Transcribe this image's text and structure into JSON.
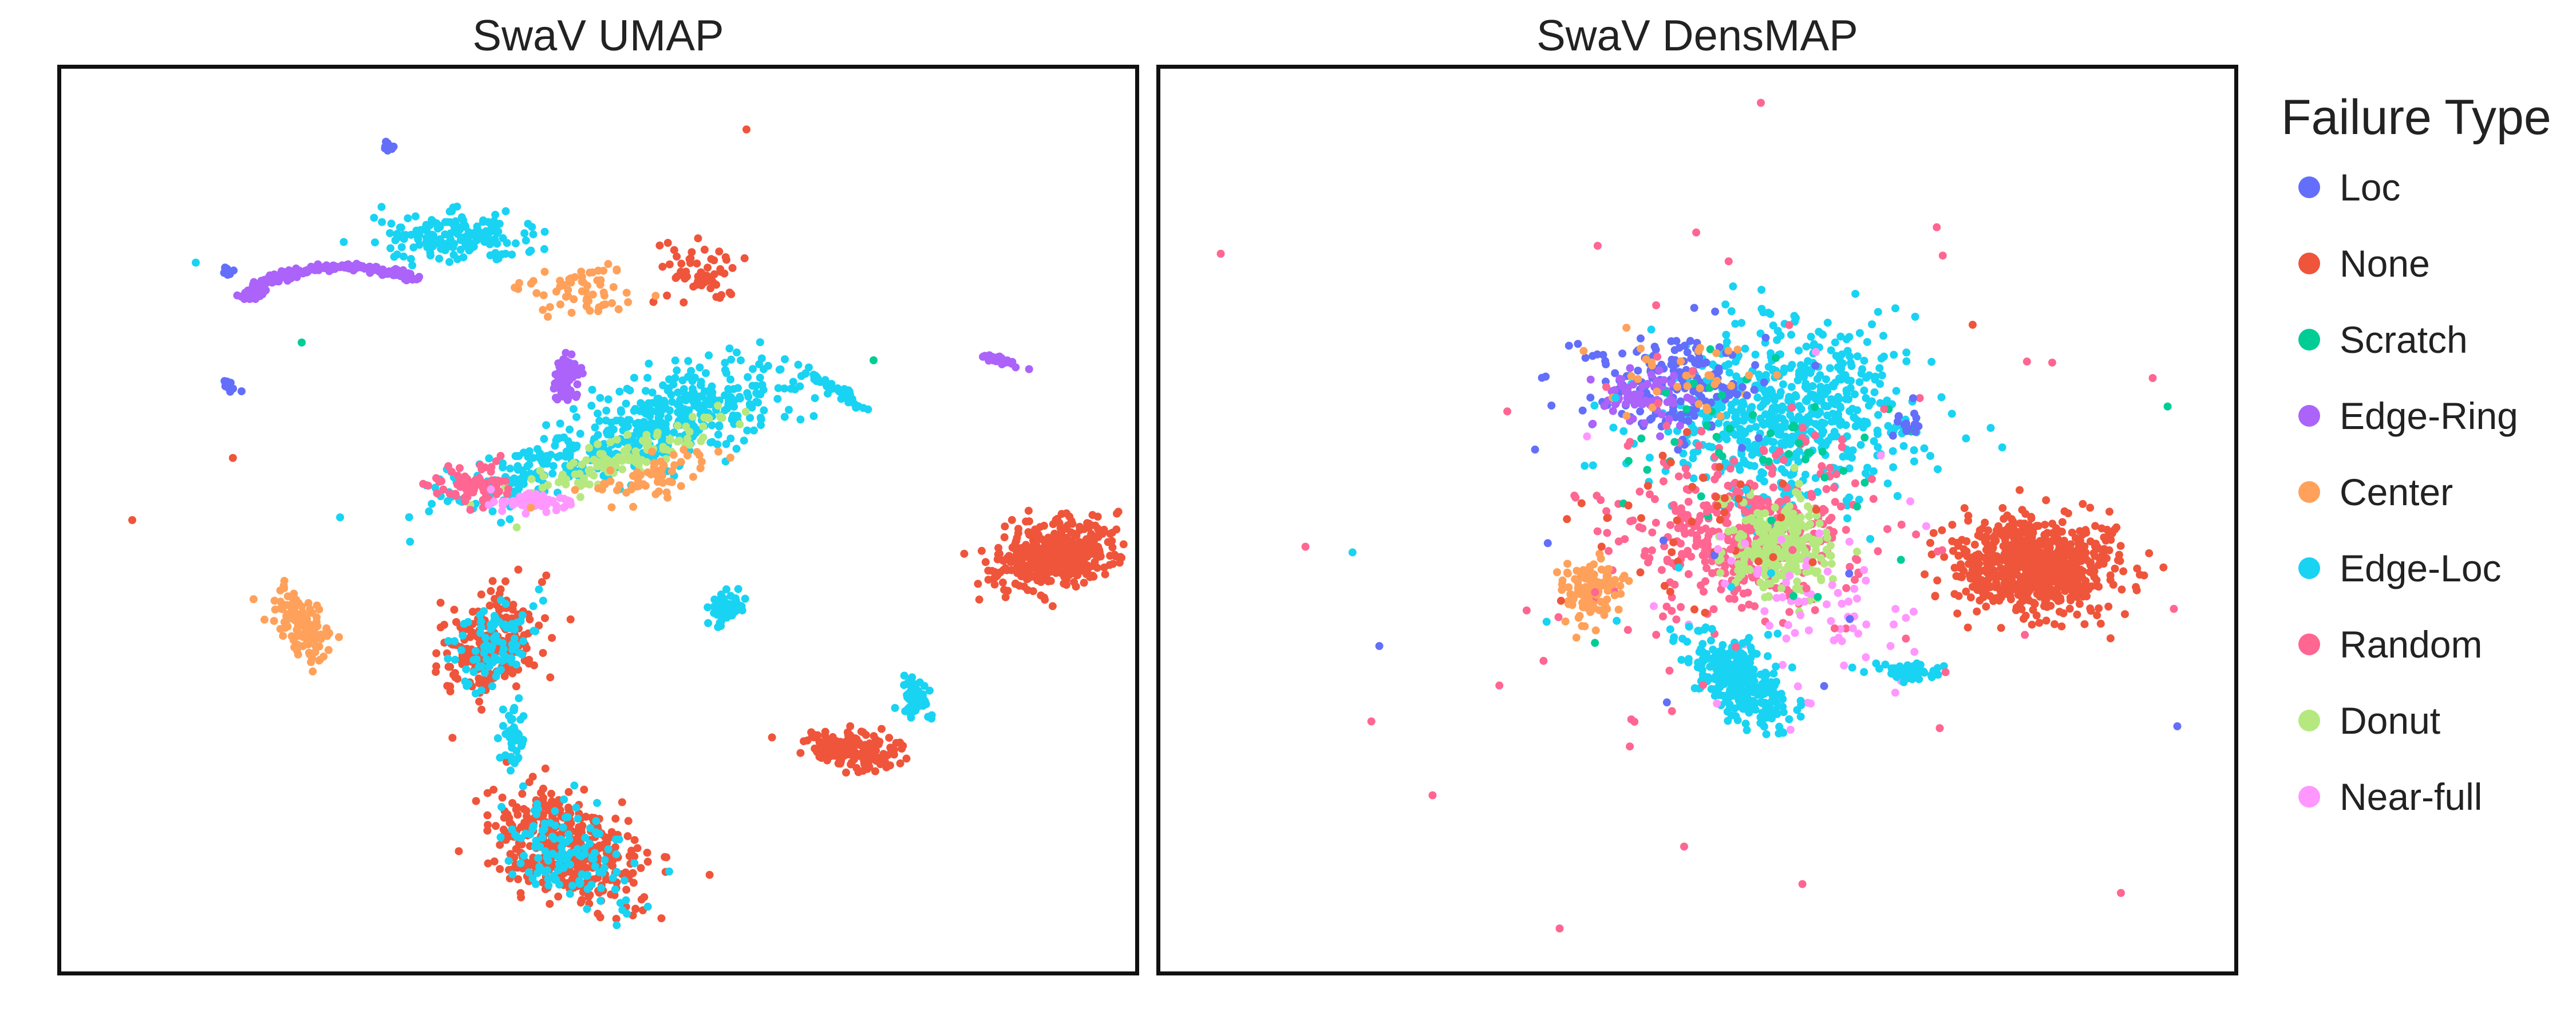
{
  "chart_data": [
    {
      "type": "scatter",
      "title": "SwaV UMAP",
      "xlabel": "",
      "ylabel": "",
      "grid": false,
      "legend": "right",
      "xlim": [
        0,
        100
      ],
      "ylim": [
        0,
        100
      ],
      "clusters": [
        {
          "series": "Edge-Ring",
          "cx": 26,
          "cy": 77,
          "rx": 9,
          "ry": 2.5,
          "n": 230,
          "shape": "arc",
          "r": 10,
          "a0": 40,
          "a1": 175
        },
        {
          "series": "Edge-Loc",
          "cx": 36,
          "cy": 82,
          "rx": 7,
          "ry": 3,
          "n": 160
        },
        {
          "series": "Edge-Loc",
          "cx": 58,
          "cy": 62,
          "rx": 11,
          "ry": 5,
          "n": 320,
          "rot": 20
        },
        {
          "series": "Edge-Loc",
          "cx": 45,
          "cy": 56,
          "rx": 12,
          "ry": 3,
          "n": 180,
          "rot": 20
        },
        {
          "series": "None",
          "cx": 60,
          "cy": 78,
          "rx": 4,
          "ry": 3,
          "n": 60
        },
        {
          "series": "Center",
          "cx": 48,
          "cy": 76,
          "rx": 6,
          "ry": 3,
          "n": 60
        },
        {
          "series": "Donut",
          "cx": 52,
          "cy": 57,
          "rx": 10,
          "ry": 2.2,
          "n": 120,
          "rot": 25
        },
        {
          "series": "Random",
          "cx": 38,
          "cy": 54,
          "rx": 4,
          "ry": 2.5,
          "n": 70
        },
        {
          "series": "Near-full",
          "cx": 44,
          "cy": 52,
          "rx": 4,
          "ry": 1.2,
          "n": 60
        },
        {
          "series": "Center",
          "cx": 56,
          "cy": 55,
          "rx": 8,
          "ry": 2.5,
          "n": 60,
          "rot": 20
        },
        {
          "series": "Edge-Ring",
          "cx": 47,
          "cy": 66,
          "rx": 1.2,
          "ry": 3,
          "n": 70
        },
        {
          "series": "Edge-Loc",
          "cx": 72,
          "cy": 65,
          "rx": 4,
          "ry": 0.6,
          "n": 45,
          "rot": -35
        },
        {
          "series": "Edge-Loc",
          "cx": 80,
          "cy": 30,
          "rx": 1.5,
          "ry": 3,
          "n": 60
        },
        {
          "series": "None",
          "cx": 93,
          "cy": 46,
          "rx": 6,
          "ry": 3.5,
          "n": 420,
          "rot": 15
        },
        {
          "series": "None",
          "cx": 40,
          "cy": 36,
          "rx": 4,
          "ry": 6,
          "n": 220,
          "rot": -25
        },
        {
          "series": "Edge-Loc",
          "cx": 40,
          "cy": 36,
          "rx": 3.5,
          "ry": 5,
          "n": 90,
          "rot": -25
        },
        {
          "series": "None",
          "cx": 47,
          "cy": 13,
          "rx": 8,
          "ry": 5,
          "n": 420,
          "rot": -38
        },
        {
          "series": "Edge-Loc",
          "cx": 47,
          "cy": 13,
          "rx": 7.5,
          "ry": 4.5,
          "n": 130,
          "rot": -38
        },
        {
          "series": "Edge-Loc",
          "cx": 42,
          "cy": 26,
          "rx": 1,
          "ry": 4,
          "n": 50
        },
        {
          "series": "None",
          "cx": 74,
          "cy": 24,
          "rx": 4.5,
          "ry": 2,
          "n": 170,
          "rot": -10
        },
        {
          "series": "Center",
          "cx": 22,
          "cy": 38,
          "rx": 2,
          "ry": 5,
          "n": 120,
          "rot": 25
        },
        {
          "series": "Edge-Loc",
          "cx": 62,
          "cy": 40,
          "rx": 1.5,
          "ry": 2,
          "n": 60
        },
        {
          "series": "Edge-Ring",
          "cx": 88,
          "cy": 68,
          "rx": 2.5,
          "ry": 0.5,
          "n": 25,
          "rot": -20
        },
        {
          "series": "Loc",
          "cx": 15,
          "cy": 78,
          "rx": 0.8,
          "ry": 0.4,
          "n": 10
        },
        {
          "series": "Loc",
          "cx": 30,
          "cy": 92,
          "rx": 0.8,
          "ry": 0.4,
          "n": 10
        },
        {
          "series": "Loc",
          "cx": 15,
          "cy": 65,
          "rx": 1,
          "ry": 0.6,
          "n": 10,
          "rot": -30
        }
      ],
      "points": [
        {
          "series": "None",
          "x": 6,
          "y": 50
        },
        {
          "series": "None",
          "x": 64,
          "y": 94
        },
        {
          "series": "None",
          "x": 15.5,
          "y": 57
        },
        {
          "series": "Scratch",
          "x": 76,
          "y": 68
        },
        {
          "series": "Scratch",
          "x": 22,
          "y": 70
        },
        {
          "series": "Edge-Loc",
          "x": 12,
          "y": 79
        }
      ]
    },
    {
      "type": "scatter",
      "title": "SwaV DensMAP",
      "xlabel": "",
      "ylabel": "",
      "grid": false,
      "legend": "right",
      "xlim": [
        0,
        100
      ],
      "ylim": [
        0,
        100
      ],
      "clusters": [
        {
          "series": "Edge-Loc",
          "cx": 58,
          "cy": 62,
          "rx": 12,
          "ry": 10,
          "n": 620
        },
        {
          "series": "Loc",
          "cx": 48,
          "cy": 65,
          "rx": 9,
          "ry": 6,
          "n": 180
        },
        {
          "series": "Edge-Ring",
          "cx": 45,
          "cy": 64,
          "rx": 4,
          "ry": 3,
          "n": 70
        },
        {
          "series": "Random",
          "cx": 54,
          "cy": 48,
          "rx": 11,
          "ry": 9,
          "n": 400
        },
        {
          "series": "Donut",
          "cx": 58,
          "cy": 47,
          "rx": 5,
          "ry": 5,
          "n": 260
        },
        {
          "series": "Near-full",
          "cx": 62,
          "cy": 40,
          "rx": 10,
          "ry": 8,
          "n": 60
        },
        {
          "series": "Edge-Loc",
          "cx": 54,
          "cy": 32,
          "rx": 6,
          "ry": 3.5,
          "n": 320,
          "rot": -50
        },
        {
          "series": "None",
          "cx": 82,
          "cy": 45,
          "rx": 8,
          "ry": 5,
          "n": 700,
          "rot": -5
        },
        {
          "series": "Center",
          "cx": 40,
          "cy": 42,
          "rx": 3,
          "ry": 3.5,
          "n": 130
        },
        {
          "series": "Edge-Loc",
          "cx": 70,
          "cy": 33,
          "rx": 2.5,
          "ry": 1,
          "n": 50
        },
        {
          "series": "Scratch",
          "cx": 55,
          "cy": 60,
          "rx": 12,
          "ry": 9,
          "n": 40
        },
        {
          "series": "Center",
          "cx": 50,
          "cy": 66,
          "rx": 8,
          "ry": 5,
          "n": 35
        },
        {
          "series": "None",
          "cx": 50,
          "cy": 50,
          "rx": 12,
          "ry": 10,
          "n": 40
        },
        {
          "series": "Random",
          "cx": 55,
          "cy": 50,
          "rx": 35,
          "ry": 35,
          "n": 55
        },
        {
          "series": "Loc",
          "cx": 55,
          "cy": 50,
          "rx": 30,
          "ry": 30,
          "n": 15
        },
        {
          "series": "Edge-Loc",
          "cx": 55,
          "cy": 50,
          "rx": 30,
          "ry": 30,
          "n": 15
        },
        {
          "series": "Near-full",
          "cx": 55,
          "cy": 50,
          "rx": 30,
          "ry": 30,
          "n": 12
        },
        {
          "series": "Scratch",
          "cx": 55,
          "cy": 50,
          "rx": 30,
          "ry": 30,
          "n": 10
        },
        {
          "series": "Loc",
          "cx": 70,
          "cy": 61,
          "rx": 1,
          "ry": 1,
          "n": 15
        }
      ],
      "points": [
        {
          "series": "Random",
          "x": 5,
          "y": 80
        },
        {
          "series": "Random",
          "x": 56,
          "y": 97
        },
        {
          "series": "Random",
          "x": 13,
          "y": 47
        },
        {
          "series": "Random",
          "x": 90,
          "y": 8
        },
        {
          "series": "Random",
          "x": 93,
          "y": 66
        },
        {
          "series": "Random",
          "x": 25,
          "y": 19
        },
        {
          "series": "Random",
          "x": 37,
          "y": 4
        },
        {
          "series": "Random",
          "x": 95,
          "y": 40
        },
        {
          "series": "None",
          "x": 76,
          "y": 72
        }
      ]
    }
  ],
  "legend": {
    "title": "Failure Type",
    "items": [
      {
        "label": "Loc",
        "color": "#636efa"
      },
      {
        "label": "None",
        "color": "#ef553b"
      },
      {
        "label": "Scratch",
        "color": "#00cc96"
      },
      {
        "label": "Edge-Ring",
        "color": "#ab63fa"
      },
      {
        "label": "Center",
        "color": "#ffa15a"
      },
      {
        "label": "Edge-Loc",
        "color": "#19d3f3"
      },
      {
        "label": "Random",
        "color": "#ff6692"
      },
      {
        "label": "Donut",
        "color": "#b6e880"
      },
      {
        "label": "Near-full",
        "color": "#ff97ff"
      }
    ]
  }
}
